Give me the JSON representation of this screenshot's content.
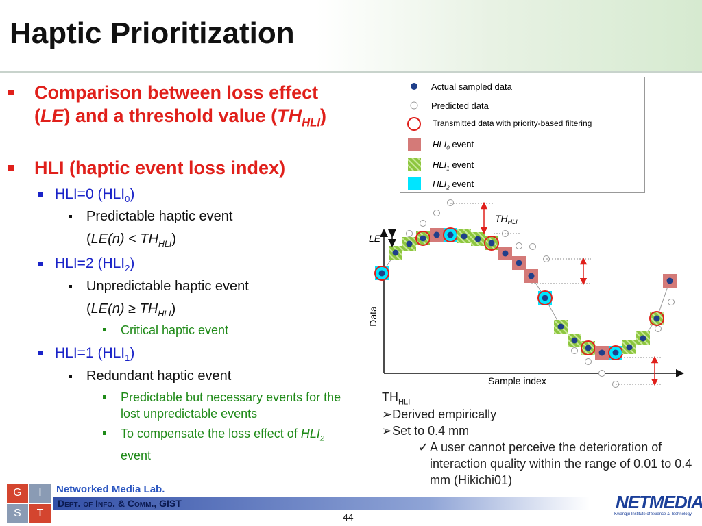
{
  "title": "Haptic Prioritization",
  "bullets": [
    {
      "parts": [
        "Comparison between loss effect (",
        "LE",
        ") and a threshold value (",
        "TH",
        "HLI",
        ")"
      ]
    },
    {
      "parts": [
        "HLI (haptic event loss index)"
      ]
    },
    {
      "parts": [
        "HLI=0 (HLI",
        "0",
        ")"
      ]
    },
    {
      "parts": [
        "Predictable haptic event"
      ]
    },
    {
      "parts": [
        "(",
        "LE(n)",
        " < ",
        "TH",
        "HLI",
        ")"
      ]
    },
    {
      "parts": [
        "HLI=2 (HLI",
        "2",
        ")"
      ]
    },
    {
      "parts": [
        "Unpredictable haptic event"
      ]
    },
    {
      "parts": [
        "(",
        "LE(n)",
        " ≥ ",
        "TH",
        "HLI",
        ")"
      ]
    },
    {
      "parts": [
        "Critical haptic event"
      ]
    },
    {
      "parts": [
        "HLI=1 (HLI",
        "1",
        ")"
      ]
    },
    {
      "parts": [
        "Redundant haptic event"
      ]
    },
    {
      "parts": [
        "Predictable but necessary events for the lost unpredictable events"
      ]
    },
    {
      "parts": [
        "To compensate the loss effect of ",
        "HLI",
        "2",
        " event"
      ]
    }
  ],
  "legend": [
    {
      "parts": [
        "Actual sampled data"
      ]
    },
    {
      "parts": [
        "Predicted data"
      ]
    },
    {
      "parts": [
        "Transmitted data with priority-based filtering"
      ]
    },
    {
      "parts": [
        "HLI",
        "0",
        " event"
      ]
    },
    {
      "parts": [
        "HLI",
        "1",
        " event"
      ]
    },
    {
      "parts": [
        "HLI",
        "2",
        " event"
      ]
    }
  ],
  "diagram": {
    "th": [
      "TH",
      "HLI"
    ],
    "le": "LE",
    "y_label": "Data",
    "x_label": "Sample index"
  },
  "notes": {
    "heading": [
      "TH",
      "HLI"
    ],
    "items": [
      "Derived empirically",
      "Set to 0.4 mm"
    ],
    "sub": "A user cannot perceive the deterioration of interaction quality within the range of 0.01 to 0.4 mm (Hikichi01)"
  },
  "footer": {
    "lab": "Networked Media Lab.",
    "dept": "Dept. of Info. & Comm., GIST",
    "page": "44",
    "logo": [
      "G",
      "I",
      "S",
      "T"
    ],
    "brand": "NETMEDIA",
    "institute": "Kwangju Institute of Science & Technology"
  }
}
